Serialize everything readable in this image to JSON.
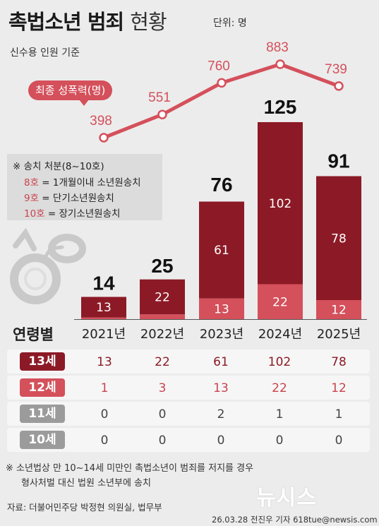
{
  "header": {
    "title_bold": "촉법소년 범죄",
    "title_light": "현황",
    "unit": "단위: 명",
    "basis": "신수용 인원 기준"
  },
  "legend_box": {
    "title": "※ 송치 처분(8~10호)",
    "items": [
      {
        "code": "8호",
        "desc": " = 1개월이내 소년원송치"
      },
      {
        "code": "9호",
        "desc": " = 단기소년원송치"
      },
      {
        "code": "10호",
        "desc": "  = 장기소년원송치"
      }
    ]
  },
  "chart_data": {
    "type": "bar",
    "categories": [
      "2021년",
      "2022년",
      "2023년",
      "2024년",
      "2025년"
    ],
    "totals": [
      14,
      25,
      76,
      125,
      91
    ],
    "series": [
      {
        "name": "12세",
        "values": [
          1,
          3,
          13,
          22,
          12
        ]
      },
      {
        "name": "13세",
        "values": [
          13,
          22,
          61,
          102,
          78
        ]
      }
    ],
    "segment_labels": [
      [
        "",
        "13"
      ],
      [
        "",
        "22"
      ],
      [
        "13",
        "61"
      ],
      [
        "22",
        "102"
      ],
      [
        "12",
        "78"
      ]
    ],
    "line": {
      "name": "최종 성폭력(명)",
      "values": [
        398,
        551,
        760,
        883,
        739
      ]
    },
    "colors": {
      "bar_dark": "#8c1a26",
      "bar_light": "#d4505b",
      "line": "#d4505b"
    }
  },
  "age_table": {
    "title": "연령별",
    "rows": [
      {
        "label": "13세",
        "color": "#8c1a26",
        "text_color": "#8c1a26",
        "values": [
          "13",
          "22",
          "61",
          "102",
          "78"
        ]
      },
      {
        "label": "12세",
        "color": "#d4505b",
        "text_color": "#c9434e",
        "values": [
          "1",
          "3",
          "13",
          "22",
          "12"
        ]
      },
      {
        "label": "11세",
        "color": "#9b9b9b",
        "text_color": "#444444",
        "values": [
          "0",
          "0",
          "2",
          "1",
          "1"
        ]
      },
      {
        "label": "10세",
        "color": "#9b9b9b",
        "text_color": "#444444",
        "values": [
          "0",
          "0",
          "0",
          "0",
          "0"
        ]
      }
    ]
  },
  "notes": {
    "line1": "※ 소년법상 만 10~14세 미만인 촉법소년이 범죄를 저지를 경우",
    "line2": "형사처벌 대신 법원 소년부에 송치"
  },
  "source": "자료: 더불어민주당 박정현 의원실, 법무부",
  "credit": "26.03.28 전진우 기자 618tue@newsis.com",
  "logo": "뉴시스"
}
